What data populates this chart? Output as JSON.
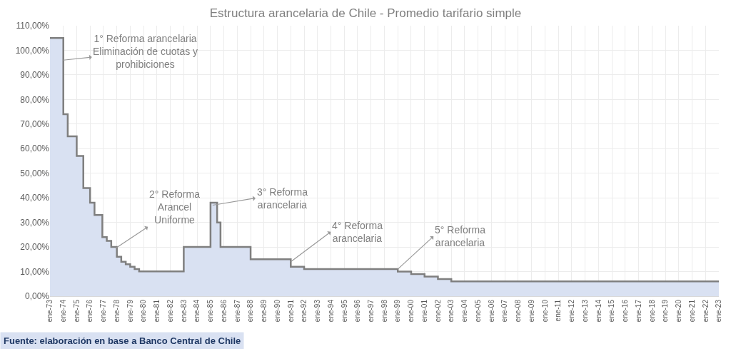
{
  "chart_data": {
    "type": "area",
    "title": "Estructura arancelaria de Chile - Promedio tarifario simple",
    "x": [
      "1973-01",
      "1974-01",
      "1974-01",
      "1974-05",
      "1974-05",
      "1975-01",
      "1975-01",
      "1975-07",
      "1975-07",
      "1976-01",
      "1976-01",
      "1976-05",
      "1976-05",
      "1976-12",
      "1976-12",
      "1977-04",
      "1977-04",
      "1977-08",
      "1977-08",
      "1978-01",
      "1978-01",
      "1978-05",
      "1978-05",
      "1978-09",
      "1978-09",
      "1979-01",
      "1979-01",
      "1979-05",
      "1979-05",
      "1979-09",
      "1979-09",
      "1983-01",
      "1983-01",
      "1985-01",
      "1985-01",
      "1985-07",
      "1985-07",
      "1985-10",
      "1985-10",
      "1988-01",
      "1988-01",
      "1991-01",
      "1991-01",
      "1992-01",
      "1992-01",
      "1999-01",
      "1999-01",
      "2000-01",
      "2000-01",
      "2001-01",
      "2001-01",
      "2002-01",
      "2002-01",
      "2003-01",
      "2003-01",
      "2023-01"
    ],
    "series": [
      {
        "color": "#d9e1f2",
        "values": [
          105,
          105,
          74,
          74,
          65,
          65,
          57,
          57,
          44,
          44,
          38,
          38,
          33,
          33,
          24,
          24,
          22.5,
          22.5,
          20,
          20,
          16,
          16,
          14,
          14,
          13,
          13,
          12,
          12,
          11,
          11,
          10.1,
          10.1,
          20,
          20,
          38,
          38,
          30,
          30,
          20,
          20,
          15,
          15,
          12,
          12,
          11,
          11,
          10,
          10,
          9,
          9,
          8,
          8,
          7,
          7,
          6,
          6
        ]
      }
    ],
    "ylim": [
      0,
      110
    ],
    "yticks": [
      {
        "value": 0,
        "label": "0,00%"
      },
      {
        "value": 10,
        "label": "10,00%"
      },
      {
        "value": 20,
        "label": "20,00%"
      },
      {
        "value": 30,
        "label": "30,00%"
      },
      {
        "value": 40,
        "label": "40,00%"
      },
      {
        "value": 50,
        "label": "50,00%"
      },
      {
        "value": 60,
        "label": "60,00%"
      },
      {
        "value": 70,
        "label": "70,00%"
      },
      {
        "value": 80,
        "label": "80,00%"
      },
      {
        "value": 90,
        "label": "90,00%"
      },
      {
        "value": 100,
        "label": "100,00%"
      },
      {
        "value": 110,
        "label": "110,00%"
      }
    ],
    "xlim": [
      "1973-01",
      "2023-01"
    ],
    "xticks": [
      {
        "value": "1973-01",
        "label": "ene-73"
      },
      {
        "value": "1974-01",
        "label": "ene-74"
      },
      {
        "value": "1975-01",
        "label": "ene-75"
      },
      {
        "value": "1976-01",
        "label": "ene-76"
      },
      {
        "value": "1977-01",
        "label": "ene-77"
      },
      {
        "value": "1978-01",
        "label": "ene-78"
      },
      {
        "value": "1979-01",
        "label": "ene-79"
      },
      {
        "value": "1980-01",
        "label": "ene-80"
      },
      {
        "value": "1981-01",
        "label": "ene-81"
      },
      {
        "value": "1982-01",
        "label": "ene-82"
      },
      {
        "value": "1983-01",
        "label": "ene-83"
      },
      {
        "value": "1984-01",
        "label": "ene-84"
      },
      {
        "value": "1985-01",
        "label": "ene-85"
      },
      {
        "value": "1986-01",
        "label": "ene-86"
      },
      {
        "value": "1987-01",
        "label": "ene-87"
      },
      {
        "value": "1988-01",
        "label": "ene-88"
      },
      {
        "value": "1989-01",
        "label": "ene-89"
      },
      {
        "value": "1990-01",
        "label": "ene-90"
      },
      {
        "value": "1991-01",
        "label": "ene-91"
      },
      {
        "value": "1992-01",
        "label": "ene-92"
      },
      {
        "value": "1993-01",
        "label": "ene-93"
      },
      {
        "value": "1994-01",
        "label": "ene-94"
      },
      {
        "value": "1995-01",
        "label": "ene-95"
      },
      {
        "value": "1996-01",
        "label": "ene-96"
      },
      {
        "value": "1997-01",
        "label": "ene-97"
      },
      {
        "value": "1998-01",
        "label": "ene-98"
      },
      {
        "value": "1999-01",
        "label": "ene-99"
      },
      {
        "value": "2000-01",
        "label": "ene-00"
      },
      {
        "value": "2001-01",
        "label": "ene-01"
      },
      {
        "value": "2002-01",
        "label": "ene-02"
      },
      {
        "value": "2003-01",
        "label": "ene-03"
      },
      {
        "value": "2004-01",
        "label": "ene-04"
      },
      {
        "value": "2005-01",
        "label": "ene-05"
      },
      {
        "value": "2006-01",
        "label": "ene-06"
      },
      {
        "value": "2007-01",
        "label": "ene-07"
      },
      {
        "value": "2008-01",
        "label": "ene-08"
      },
      {
        "value": "2009-01",
        "label": "ene-09"
      },
      {
        "value": "2010-01",
        "label": "ene-10"
      },
      {
        "value": "2011-01",
        "label": "ene-11"
      },
      {
        "value": "2012-01",
        "label": "ene-12"
      },
      {
        "value": "2013-01",
        "label": "ene-13"
      },
      {
        "value": "2014-01",
        "label": "ene-14"
      },
      {
        "value": "2015-01",
        "label": "ene-15"
      },
      {
        "value": "2016-01",
        "label": "ene-16"
      },
      {
        "value": "2017-01",
        "label": "ene-17"
      },
      {
        "value": "2018-01",
        "label": "ene-18"
      },
      {
        "value": "2019-01",
        "label": "ene-19"
      },
      {
        "value": "2020-01",
        "label": "ene-20"
      },
      {
        "value": "2021-01",
        "label": "ene-21"
      },
      {
        "value": "2022-01",
        "label": "ene-22"
      },
      {
        "value": "2023-01",
        "label": "ene-23"
      }
    ],
    "grid": true,
    "marker": "none",
    "line_style": "solid",
    "annotations": [
      {
        "text": "1° Reforma arancelaria\nEliminación de cuotas y\nprohibiciones",
        "x": "1974-01",
        "y": 96
      },
      {
        "text": "2° Reforma\nArancel\nUniforme",
        "x": "1977-12",
        "y": 19.5
      },
      {
        "text": "3° Reforma\narancelaria",
        "x": "1985-03",
        "y": 37
      },
      {
        "text": "4° Reforma\narancelaria",
        "x": "1991-01",
        "y": 14
      },
      {
        "text": "5° Reforma\narancelaria",
        "x": "1999-01",
        "y": 11
      },
      "Fuente: elaboración en base a Banco Central de Chile"
    ]
  }
}
